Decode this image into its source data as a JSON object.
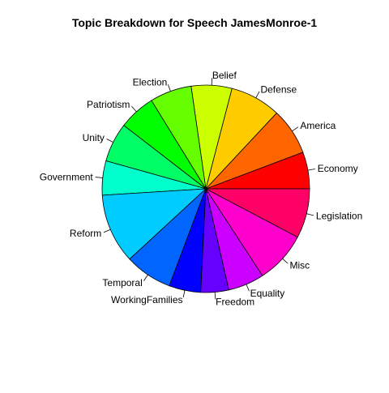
{
  "chart_data": {
    "type": "pie",
    "title": "Topic Breakdown for Speech JamesMonroe-1",
    "start_angle_deg": 0,
    "direction": "counterclockwise",
    "slices": [
      {
        "label": "Economy",
        "value": 5.8,
        "color": "#FF0000"
      },
      {
        "label": "America",
        "value": 7.4,
        "color": "#FF6600"
      },
      {
        "label": "Defense",
        "value": 8.0,
        "color": "#FFCC00"
      },
      {
        "label": "Belief",
        "value": 6.4,
        "color": "#CCFF00"
      },
      {
        "label": "Election",
        "value": 6.6,
        "color": "#66FF00"
      },
      {
        "label": "Patriotism",
        "value": 5.8,
        "color": "#00FF00"
      },
      {
        "label": "Unity",
        "value": 6.2,
        "color": "#00FF66"
      },
      {
        "label": "Government",
        "value": 5.4,
        "color": "#00FFCC"
      },
      {
        "label": "Reform",
        "value": 11.0,
        "color": "#00CCFF"
      },
      {
        "label": "Temporal",
        "value": 7.5,
        "color": "#0066FF"
      },
      {
        "label": "WorkingFamilies",
        "value": 5.0,
        "color": "#0000FF"
      },
      {
        "label": "Freedom",
        "value": 4.4,
        "color": "#6600FF"
      },
      {
        "label": "Equality",
        "value": 5.7,
        "color": "#CC00FF"
      },
      {
        "label": "Misc",
        "value": 8.2,
        "color": "#FF00CC"
      },
      {
        "label": "Legislation",
        "value": 7.8,
        "color": "#FF0066"
      }
    ]
  }
}
